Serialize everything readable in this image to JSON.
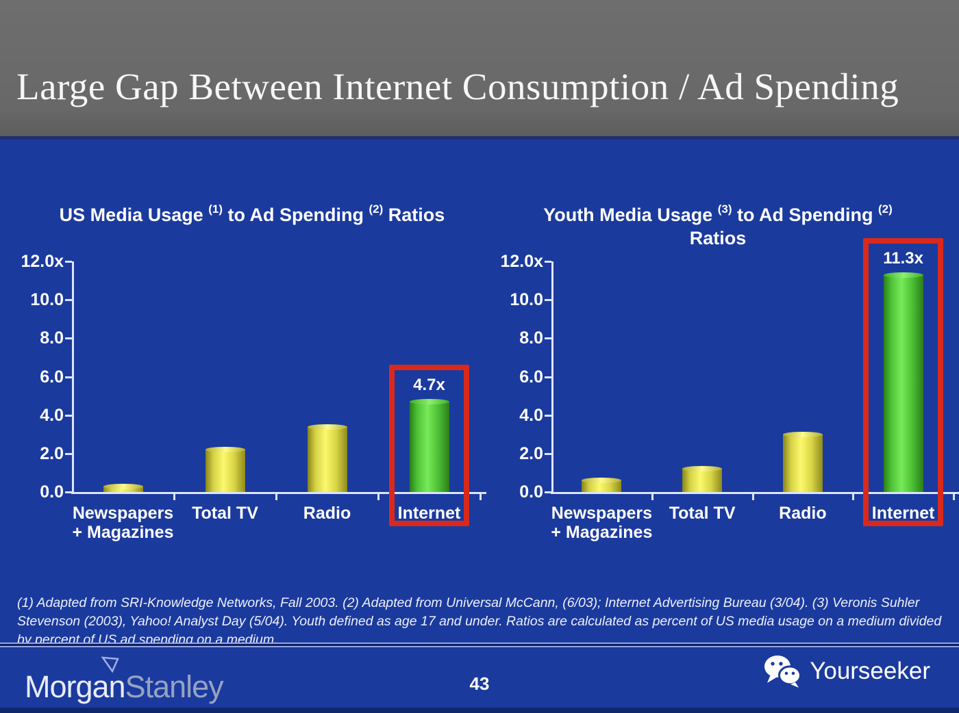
{
  "slide": {
    "title": "Large Gap Between Internet Consumption / Ad Spending",
    "page_number": "43",
    "footnote_lines": [
      "(1) Adapted from SRI-Knowledge Networks, Fall 2003.  (2) Adapted from Universal McCann, (6/03); Internet Advertising Bureau (3/04). (3) Veronis Suhler",
      "Stevenson (2003), Yahoo! Analyst Day (5/04).  Youth defined as age 17 and under.  Ratios are calculated as percent of US media usage on a medium divided",
      "by percent of US ad spending on a medium."
    ],
    "footer": {
      "brand_left_part1": "Morgan",
      "brand_left_part2": "Stanley",
      "brand_right": "Yourseeker"
    }
  },
  "colors": {
    "background_blue": "#1b3a9e",
    "header_gray": "#686868",
    "bar_yellow": "#f2ef5e",
    "bar_green": "#5ed93f",
    "highlight_red": "#d9291c",
    "axis_line": "#dde4fb",
    "text_white": "#ffffff"
  },
  "chart_data": [
    {
      "type": "bar",
      "title_parts": [
        {
          "text": "US Media Usage "
        },
        {
          "sup": "(1)"
        },
        {
          "text": " to Ad Spending "
        },
        {
          "sup": "(2)"
        },
        {
          "text": " Ratios"
        }
      ],
      "title_line2": "",
      "categories": [
        [
          "Newspapers",
          "+ Magazines"
        ],
        [
          "Total TV"
        ],
        [
          "Radio"
        ],
        [
          "Internet"
        ]
      ],
      "values": [
        0.3,
        2.2,
        3.4,
        4.7
      ],
      "bar_colors": [
        "yellow",
        "yellow",
        "yellow",
        "green"
      ],
      "value_labels": [
        null,
        null,
        null,
        "4.7x"
      ],
      "highlight_index": 3,
      "y_tick_labels": [
        "0.0",
        "2.0",
        "4.0",
        "6.0",
        "8.0",
        "10.0",
        "12.0x"
      ],
      "ylim": [
        0,
        12
      ],
      "grid": "off",
      "legend": "none"
    },
    {
      "type": "bar",
      "title_parts": [
        {
          "text": "Youth Media Usage "
        },
        {
          "sup": "(3)"
        },
        {
          "text": " to Ad Spending "
        },
        {
          "sup": "(2)"
        }
      ],
      "title_line2": "Ratios",
      "categories": [
        [
          "Newspapers",
          "+ Magazines"
        ],
        [
          "Total TV"
        ],
        [
          "Radio"
        ],
        [
          "Internet"
        ]
      ],
      "values": [
        0.6,
        1.2,
        3.0,
        11.3
      ],
      "bar_colors": [
        "yellow",
        "yellow",
        "yellow",
        "green"
      ],
      "value_labels": [
        null,
        null,
        null,
        "11.3x"
      ],
      "highlight_index": 3,
      "y_tick_labels": [
        "0.0",
        "2.0",
        "4.0",
        "6.0",
        "8.0",
        "10.0",
        "12.0x"
      ],
      "ylim": [
        0,
        12
      ],
      "grid": "off",
      "legend": "none"
    }
  ]
}
